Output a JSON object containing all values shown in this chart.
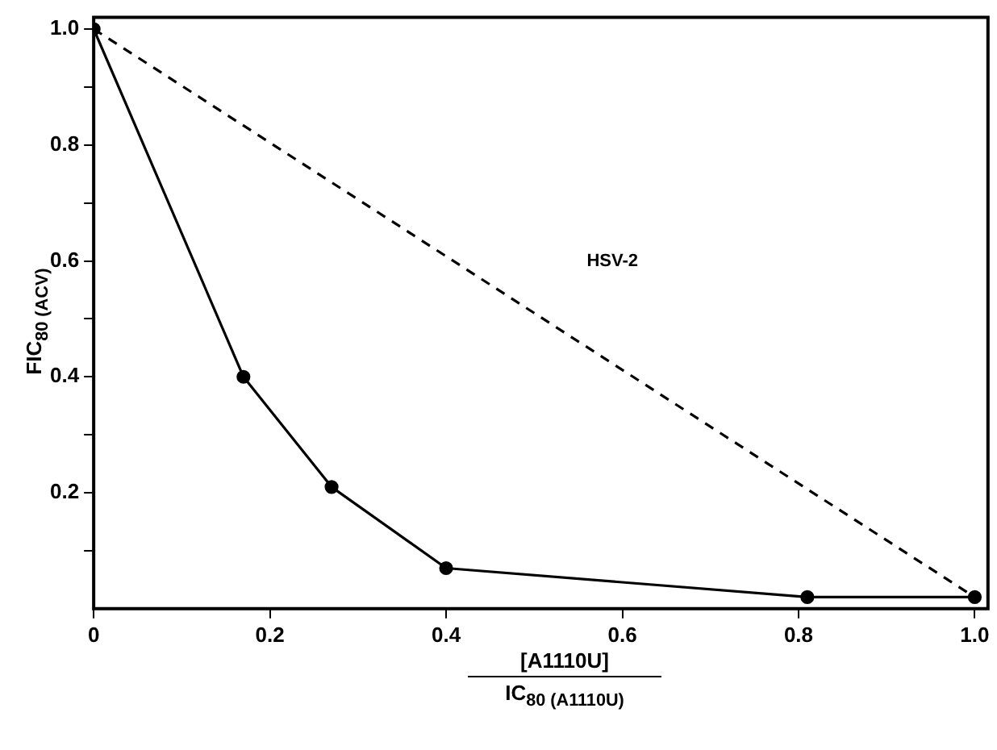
{
  "chart_data": {
    "type": "line",
    "xlabel": "[A1110U]\nIC$_{80 (A1110U)}$",
    "ylabel": "FIC$_{80 (ACV)}$",
    "annotations": [
      "HSV-2"
    ],
    "xlim": [
      0,
      1.015
    ],
    "ylim": [
      0,
      1.02
    ],
    "xticks": [
      0,
      0.2,
      0.4,
      0.6,
      0.8,
      {
        "value": 1,
        "label": "1.0"
      }
    ],
    "yticks": [
      {
        "value": 0.1,
        "label": null
      },
      0.2,
      {
        "value": 0.3,
        "label": null
      },
      0.4,
      {
        "value": 0.5,
        "label": null
      },
      0.6,
      {
        "value": 0.7,
        "label": null
      },
      0.8,
      {
        "value": 0.9,
        "label": null
      },
      {
        "value": 1,
        "label": "1.0"
      }
    ],
    "grid": false,
    "legend": false,
    "series": [
      {
        "color": "#000000",
        "x": [
          0,
          0.17,
          0.27,
          0.4,
          0.81,
          1.0
        ],
        "values": [
          1.0,
          0.4,
          0.21,
          0.07,
          0.02,
          0.02
        ],
        "marker": "circle",
        "line_style": "solid"
      },
      {
        "color": "#000000",
        "x": [
          0,
          1.0
        ],
        "values": [
          1.0,
          0.02
        ],
        "marker": "none",
        "line_style": "dashed"
      }
    ]
  }
}
